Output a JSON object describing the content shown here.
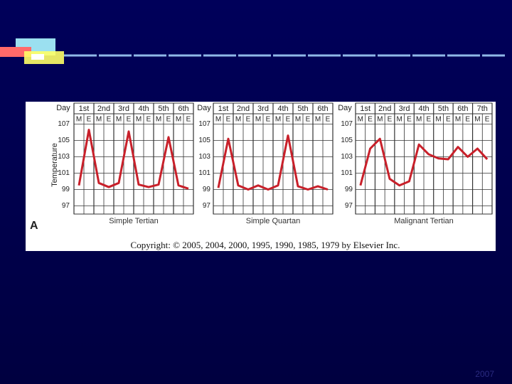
{
  "chart_data": [
    {
      "type": "line",
      "xlabel": "Simple Tertian",
      "ylabel": "Temperature",
      "day_label": "Day",
      "days": [
        "1st",
        "2nd",
        "3rd",
        "4th",
        "5th",
        "6th"
      ],
      "categories": [
        "M",
        "E",
        "M",
        "E",
        "M",
        "E",
        "M",
        "E",
        "M",
        "E",
        "M",
        "E"
      ],
      "series": [
        {
          "color": "#c8202a",
          "values": [
            99.5,
            106.3,
            99.8,
            99.3,
            99.8,
            106.1,
            99.6,
            99.3,
            99.6,
            105.4,
            99.5,
            99.1
          ]
        }
      ],
      "ylim": [
        96,
        108
      ],
      "yticks": [
        97,
        99,
        101,
        103,
        105,
        107
      ],
      "grid": true
    },
    {
      "type": "line",
      "xlabel": "Simple Quartan",
      "day_label": "Day",
      "days": [
        "1st",
        "2nd",
        "3rd",
        "4th",
        "5th",
        "6th"
      ],
      "categories": [
        "M",
        "E",
        "M",
        "E",
        "M",
        "E",
        "M",
        "E",
        "M",
        "E",
        "M",
        "E"
      ],
      "series": [
        {
          "color": "#c8202a",
          "values": [
            99.2,
            105.2,
            99.5,
            99,
            99.5,
            99,
            99.5,
            105.6,
            99.4,
            99,
            99.4,
            99
          ]
        }
      ],
      "ylim": [
        96,
        108
      ],
      "yticks": [
        97,
        99,
        101,
        103,
        105,
        107
      ],
      "grid": true
    },
    {
      "type": "line",
      "xlabel": "Malignant Tertian",
      "day_label": "Day",
      "days": [
        "1st",
        "2nd",
        "3rd",
        "4th",
        "5th",
        "6th",
        "7th"
      ],
      "categories": [
        "M",
        "E",
        "M",
        "E",
        "M",
        "E",
        "M",
        "E",
        "M",
        "E",
        "M",
        "E",
        "M",
        "E"
      ],
      "series": [
        {
          "color": "#c8202a",
          "values": [
            99.5,
            104,
            105.2,
            100.3,
            99.5,
            100,
            104.5,
            103.3,
            102.8,
            102.7,
            104.2,
            103,
            104,
            102.7
          ]
        }
      ],
      "ylim": [
        96,
        108
      ],
      "yticks": [
        97,
        99,
        101,
        103,
        105,
        107
      ],
      "grid": true
    }
  ],
  "panel_label": "A",
  "copyright": "Copyright: © 2005, 2004, 2000, 1995, 1990, 1985, 1979 by Elsevier Inc.",
  "footer": "2007"
}
